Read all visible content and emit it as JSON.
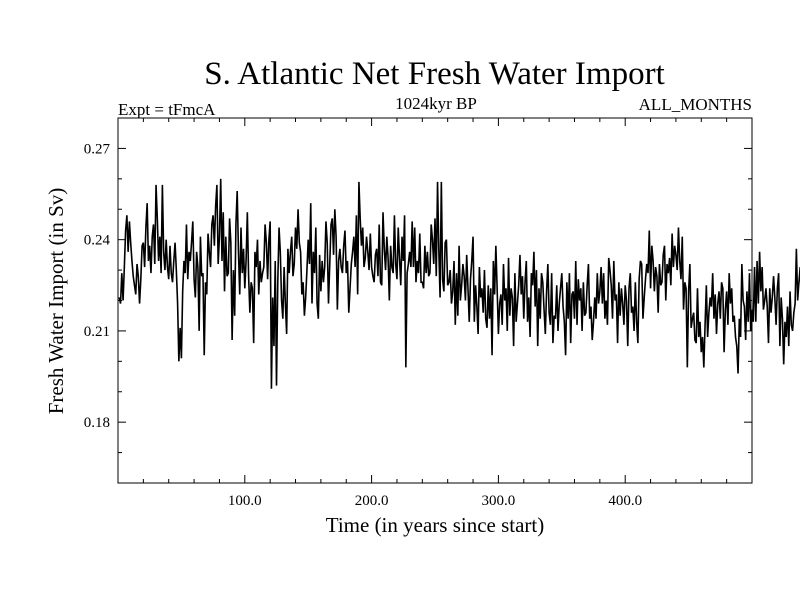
{
  "chart_data": {
    "type": "line",
    "title": "S. Atlantic Net Fresh Water Import",
    "experiment_label": "Expt = tFmcA",
    "period_label": "1024kyr BP",
    "months_label": "ALL_MONTHS",
    "xlabel": "Time (in years since start)",
    "ylabel": "Fresh Water Import (in Sv)",
    "xlim": [
      0,
      500
    ],
    "ylim": [
      0.16,
      0.28
    ],
    "x_ticks": [
      100,
      200,
      300,
      400
    ],
    "x_tick_labels": [
      "100.0",
      "200.0",
      "300.0",
      "400.0"
    ],
    "y_ticks": [
      0.18,
      0.21,
      0.24,
      0.27
    ],
    "y_tick_labels": [
      "0.18",
      "0.21",
      "0.24",
      "0.27"
    ],
    "series": [
      {
        "name": "Net Fresh Water Import",
        "x_start": 1,
        "x_step": 1,
        "values": [
          0.221,
          0.219,
          0.229,
          0.22,
          0.231,
          0.243,
          0.248,
          0.236,
          0.246,
          0.239,
          0.233,
          0.228,
          0.225,
          0.222,
          0.232,
          0.228,
          0.219,
          0.227,
          0.238,
          0.239,
          0.231,
          0.244,
          0.252,
          0.233,
          0.238,
          0.229,
          0.241,
          0.245,
          0.232,
          0.258,
          0.247,
          0.233,
          0.241,
          0.229,
          0.258,
          0.236,
          0.23,
          0.24,
          0.231,
          0.227,
          0.238,
          0.229,
          0.226,
          0.233,
          0.239,
          0.23,
          0.219,
          0.2,
          0.211,
          0.201,
          0.223,
          0.233,
          0.229,
          0.245,
          0.227,
          0.236,
          0.233,
          0.239,
          0.246,
          0.227,
          0.221,
          0.236,
          0.231,
          0.21,
          0.241,
          0.228,
          0.229,
          0.202,
          0.226,
          0.222,
          0.242,
          0.236,
          0.231,
          0.245,
          0.248,
          0.238,
          0.251,
          0.258,
          0.232,
          0.241,
          0.26,
          0.233,
          0.249,
          0.223,
          0.241,
          0.228,
          0.229,
          0.247,
          0.239,
          0.207,
          0.23,
          0.215,
          0.245,
          0.256,
          0.236,
          0.222,
          0.244,
          0.229,
          0.237,
          0.224,
          0.233,
          0.249,
          0.228,
          0.216,
          0.226,
          0.224,
          0.206,
          0.236,
          0.231,
          0.24,
          0.222,
          0.233,
          0.226,
          0.229,
          0.231,
          0.245,
          0.239,
          0.227,
          0.24,
          0.246,
          0.191,
          0.221,
          0.205,
          0.233,
          0.192,
          0.226,
          0.244,
          0.236,
          0.22,
          0.214,
          0.231,
          0.219,
          0.209,
          0.237,
          0.229,
          0.236,
          0.241,
          0.228,
          0.232,
          0.244,
          0.237,
          0.25,
          0.239,
          0.236,
          0.222,
          0.226,
          0.215,
          0.221,
          0.23,
          0.24,
          0.232,
          0.252,
          0.219,
          0.236,
          0.229,
          0.244,
          0.219,
          0.214,
          0.235,
          0.223,
          0.233,
          0.226,
          0.231,
          0.246,
          0.239,
          0.219,
          0.232,
          0.245,
          0.247,
          0.235,
          0.25,
          0.241,
          0.217,
          0.233,
          0.237,
          0.231,
          0.229,
          0.238,
          0.243,
          0.229,
          0.233,
          0.216,
          0.224,
          0.232,
          0.236,
          0.241,
          0.231,
          0.248,
          0.222,
          0.259,
          0.247,
          0.238,
          0.244,
          0.231,
          0.234,
          0.241,
          0.236,
          0.23,
          0.242,
          0.231,
          0.228,
          0.226,
          0.235,
          0.237,
          0.228,
          0.245,
          0.226,
          0.225,
          0.249,
          0.237,
          0.23,
          0.241,
          0.234,
          0.22,
          0.238,
          0.231,
          0.229,
          0.248,
          0.232,
          0.227,
          0.244,
          0.234,
          0.225,
          0.241,
          0.233,
          0.248,
          0.198,
          0.229,
          0.232,
          0.236,
          0.231,
          0.246,
          0.231,
          0.244,
          0.226,
          0.233,
          0.229,
          0.242,
          0.226,
          0.226,
          0.224,
          0.238,
          0.229,
          0.236,
          0.228,
          0.229,
          0.245,
          0.24,
          0.232,
          0.247,
          0.228,
          0.259,
          0.237,
          0.221,
          0.259,
          0.227,
          0.223,
          0.239,
          0.24,
          0.225,
          0.226,
          0.23,
          0.219,
          0.223,
          0.233,
          0.212,
          0.229,
          0.215,
          0.238,
          0.22,
          0.225,
          0.232,
          0.228,
          0.22,
          0.235,
          0.224,
          0.213,
          0.227,
          0.233,
          0.241,
          0.213,
          0.225,
          0.218,
          0.209,
          0.231,
          0.221,
          0.224,
          0.216,
          0.23,
          0.214,
          0.211,
          0.225,
          0.214,
          0.224,
          0.202,
          0.233,
          0.222,
          0.238,
          0.224,
          0.209,
          0.219,
          0.222,
          0.212,
          0.232,
          0.22,
          0.224,
          0.21,
          0.234,
          0.215,
          0.224,
          0.221,
          0.205,
          0.229,
          0.213,
          0.219,
          0.225,
          0.235,
          0.222,
          0.228,
          0.214,
          0.226,
          0.233,
          0.213,
          0.221,
          0.208,
          0.229,
          0.225,
          0.236,
          0.218,
          0.23,
          0.205,
          0.224,
          0.214,
          0.229,
          0.226,
          0.217,
          0.209,
          0.223,
          0.232,
          0.216,
          0.212,
          0.229,
          0.206,
          0.215,
          0.214,
          0.225,
          0.21,
          0.219,
          0.224,
          0.229,
          0.218,
          0.213,
          0.202,
          0.226,
          0.214,
          0.229,
          0.206,
          0.222,
          0.223,
          0.214,
          0.233,
          0.212,
          0.227,
          0.22,
          0.224,
          0.21,
          0.226,
          0.215,
          0.216,
          0.225,
          0.232,
          0.214,
          0.218,
          0.207,
          0.213,
          0.221,
          0.214,
          0.229,
          0.219,
          0.223,
          0.231,
          0.219,
          0.229,
          0.214,
          0.22,
          0.212,
          0.234,
          0.23,
          0.225,
          0.214,
          0.233,
          0.22,
          0.222,
          0.206,
          0.226,
          0.215,
          0.224,
          0.219,
          0.212,
          0.225,
          0.22,
          0.205,
          0.224,
          0.229,
          0.216,
          0.218,
          0.21,
          0.226,
          0.213,
          0.206,
          0.227,
          0.233,
          0.232,
          0.214,
          0.221,
          0.227,
          0.232,
          0.229,
          0.243,
          0.224,
          0.238,
          0.233,
          0.223,
          0.231,
          0.228,
          0.216,
          0.232,
          0.225,
          0.226,
          0.235,
          0.238,
          0.22,
          0.232,
          0.229,
          0.234,
          0.225,
          0.242,
          0.231,
          0.238,
          0.235,
          0.23,
          0.244,
          0.233,
          0.227,
          0.241,
          0.217,
          0.226,
          0.224,
          0.198,
          0.223,
          0.232,
          0.211,
          0.214,
          0.216,
          0.207,
          0.206,
          0.224,
          0.208,
          0.213,
          0.203,
          0.208,
          0.198,
          0.212,
          0.225,
          0.208,
          0.216,
          0.221,
          0.218,
          0.229,
          0.214,
          0.222,
          0.209,
          0.219,
          0.223,
          0.214,
          0.226,
          0.224,
          0.203,
          0.217,
          0.223,
          0.212,
          0.229,
          0.219,
          0.224,
          0.213,
          0.215,
          0.208,
          0.205,
          0.196,
          0.214,
          0.208,
          0.232,
          0.22,
          0.218,
          0.207,
          0.223,
          0.213,
          0.229,
          0.21,
          0.217,
          0.213,
          0.231,
          0.213,
          0.233,
          0.219,
          0.236,
          0.223,
          0.231,
          0.217,
          0.22,
          0.224,
          0.218,
          0.206,
          0.224,
          0.216,
          0.221,
          0.228,
          0.221,
          0.212,
          0.224,
          0.229,
          0.205,
          0.221,
          0.214,
          0.199,
          0.213,
          0.208,
          0.218,
          0.205,
          0.223,
          0.212,
          0.21,
          0.216,
          0.219,
          0.237,
          0.22,
          0.226,
          0.231,
          0.219,
          0.209,
          0.226,
          0.214,
          0.222,
          0.229,
          0.216,
          0.228,
          0.238,
          0.212,
          0.223,
          0.227,
          0.215,
          0.231,
          0.219,
          0.233,
          0.212,
          0.229,
          0.224,
          0.211,
          0.219,
          0.213,
          0.222,
          0.206,
          0.218,
          0.213,
          0.221,
          0.208,
          0.226,
          0.218,
          0.226,
          0.215,
          0.198,
          0.223,
          0.209,
          0.229,
          0.224,
          0.236,
          0.221,
          0.215,
          0.223,
          0.216,
          0.209,
          0.225,
          0.219,
          0.227,
          0.219,
          0.214,
          0.199,
          0.226,
          0.208,
          0.214,
          0.222,
          0.22,
          0.231,
          0.211,
          0.218,
          0.229,
          0.209,
          0.219,
          0.22,
          0.202,
          0.213,
          0.194,
          0.223,
          0.215,
          0.202,
          0.226,
          0.212,
          0.214,
          0.206,
          0.217,
          0.203,
          0.225,
          0.212,
          0.224,
          0.216,
          0.229,
          0.216,
          0.218,
          0.22,
          0.193,
          0.197,
          0.21,
          0.214,
          0.226,
          0.218,
          0.213,
          0.22,
          0.211,
          0.226,
          0.213,
          0.219,
          0.208,
          0.216,
          0.212,
          0.199,
          0.208,
          0.225,
          0.21,
          0.225,
          0.235,
          0.212,
          0.209,
          0.213,
          0.219,
          0.217,
          0.211,
          0.206,
          0.224,
          0.213,
          0.23,
          0.204,
          0.22,
          0.215,
          0.222,
          0.212,
          0.225,
          0.209,
          0.213,
          0.22,
          0.216,
          0.213,
          0.222,
          0.216,
          0.211,
          0.226,
          0.214,
          0.205,
          0.213,
          0.219,
          0.217,
          0.222,
          0.215,
          0.211,
          0.218,
          0.214,
          0.224,
          0.218,
          0.209,
          0.226,
          0.216,
          0.22,
          0.214,
          0.212,
          0.219,
          0.224,
          0.209,
          0.218,
          0.217,
          0.22,
          0.219,
          0.214,
          0.222,
          0.218,
          0.213,
          0.221,
          0.217,
          0.223,
          0.214,
          0.21,
          0.218,
          0.215,
          0.222,
          0.219,
          0.218,
          0.22,
          0.217,
          0.219,
          0.216,
          0.221,
          0.218,
          0.22,
          0.219,
          0.217
        ]
      }
    ]
  }
}
